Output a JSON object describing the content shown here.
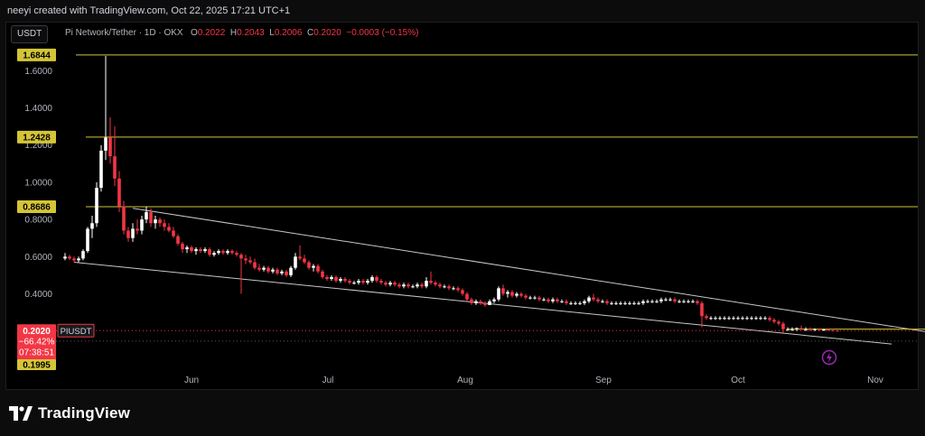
{
  "header": {
    "credit": "neeyi created with TradingView.com, Oct 22, 2025 17:21 UTC+1"
  },
  "toolbar": {
    "symbol_label": "USDT"
  },
  "legend": {
    "pair": "Pi Network/Tether · 1D · OKX",
    "o_label": "O",
    "o_value": "0.2022",
    "h_label": "H",
    "h_value": "0.2043",
    "l_label": "L",
    "l_value": "0.2006",
    "c_label": "C",
    "c_value": "0.2020",
    "change": "−0.0003 (−0.15%)"
  },
  "footer": {
    "brand": "TradingView",
    "logo_icon": "tradingview-logo-icon"
  },
  "colors": {
    "up": "#ffffff",
    "down": "#f23645",
    "level": "#d4c537",
    "trend": "#c8c8c8",
    "axis_text": "#b2b5be",
    "price_tag": "#f23645",
    "lightning": "#9c27b0"
  },
  "chart_data": {
    "type": "candlestick",
    "title": "Pi Network/Tether · 1D · OKX",
    "y_axis": {
      "ticks": [
        "1.6000",
        "1.4000",
        "1.2000",
        "1.0000",
        "0.8000",
        "0.6000",
        "0.4000"
      ],
      "tick_values": [
        1.6,
        1.4,
        1.2,
        1.0,
        0.8,
        0.6,
        0.4
      ]
    },
    "x_axis": {
      "ticks": [
        "Jun",
        "Jul",
        "Aug",
        "Sep",
        "Oct",
        "Nov"
      ]
    },
    "level_lines": [
      {
        "price": 1.6844,
        "label": "1.6844"
      },
      {
        "price": 1.2428,
        "label": "1.2428"
      },
      {
        "price": 0.8686,
        "label": "0.8686"
      }
    ],
    "current_price": {
      "price": 0.202,
      "label": "0.2020",
      "change": "−66.42%",
      "countdown": "07:38:51",
      "symbol": "PIUSDT"
    },
    "low_marker": {
      "price": 0.1995,
      "label": "0.1995"
    },
    "channel": {
      "upper": [
        [
          "May 19",
          0.86
        ],
        [
          "Nov 15",
          0.18
        ]
      ],
      "lower": [
        [
          "May 6",
          0.57
        ],
        [
          "Nov 3",
          0.13
        ]
      ]
    },
    "support_line": {
      "price": 0.21,
      "from": "Oct 11",
      "to": "Nov 15"
    },
    "candles": [
      [
        "May 4",
        0.59,
        0.62,
        0.58,
        0.6
      ],
      [
        "May 5",
        0.6,
        0.61,
        0.58,
        0.59
      ],
      [
        "May 6",
        0.59,
        0.6,
        0.57,
        0.58
      ],
      [
        "May 7",
        0.58,
        0.6,
        0.57,
        0.59
      ],
      [
        "May 8",
        0.59,
        0.64,
        0.58,
        0.63
      ],
      [
        "May 9",
        0.63,
        0.76,
        0.62,
        0.75
      ],
      [
        "May 10",
        0.75,
        0.82,
        0.7,
        0.78
      ],
      [
        "May 11",
        0.78,
        1.0,
        0.76,
        0.97
      ],
      [
        "May 12",
        0.97,
        1.2,
        0.95,
        1.17
      ],
      [
        "May 13",
        1.17,
        1.68,
        1.12,
        1.24
      ],
      [
        "May 14",
        1.24,
        1.35,
        1.1,
        1.14
      ],
      [
        "May 15",
        1.14,
        1.3,
        0.98,
        1.02
      ],
      [
        "May 16",
        1.02,
        1.06,
        0.84,
        0.87
      ],
      [
        "May 17",
        0.87,
        0.9,
        0.72,
        0.74
      ],
      [
        "May 18",
        0.74,
        0.76,
        0.68,
        0.7
      ],
      [
        "May 19",
        0.7,
        0.78,
        0.68,
        0.75
      ],
      [
        "May 20",
        0.75,
        0.8,
        0.72,
        0.74
      ],
      [
        "May 21",
        0.74,
        0.82,
        0.72,
        0.8
      ],
      [
        "May 22",
        0.8,
        0.87,
        0.78,
        0.84
      ],
      [
        "May 23",
        0.84,
        0.86,
        0.76,
        0.78
      ],
      [
        "May 24",
        0.78,
        0.82,
        0.75,
        0.8
      ],
      [
        "May 25",
        0.8,
        0.81,
        0.76,
        0.78
      ],
      [
        "May 26",
        0.78,
        0.8,
        0.74,
        0.76
      ],
      [
        "May 27",
        0.76,
        0.78,
        0.73,
        0.74
      ],
      [
        "May 28",
        0.74,
        0.76,
        0.7,
        0.71
      ],
      [
        "May 29",
        0.71,
        0.72,
        0.66,
        0.67
      ],
      [
        "May 30",
        0.67,
        0.68,
        0.62,
        0.64
      ],
      [
        "May 31",
        0.64,
        0.66,
        0.62,
        0.65
      ],
      [
        "Jun 1",
        0.65,
        0.66,
        0.62,
        0.63
      ],
      [
        "Jun 2",
        0.63,
        0.65,
        0.61,
        0.64
      ],
      [
        "Jun 3",
        0.64,
        0.65,
        0.62,
        0.63
      ],
      [
        "Jun 4",
        0.63,
        0.65,
        0.62,
        0.64
      ],
      [
        "Jun 5",
        0.64,
        0.65,
        0.6,
        0.61
      ],
      [
        "Jun 6",
        0.61,
        0.63,
        0.6,
        0.62
      ],
      [
        "Jun 7",
        0.62,
        0.64,
        0.61,
        0.63
      ],
      [
        "Jun 8",
        0.63,
        0.64,
        0.61,
        0.62
      ],
      [
        "Jun 9",
        0.62,
        0.64,
        0.61,
        0.63
      ],
      [
        "Jun 10",
        0.63,
        0.64,
        0.61,
        0.62
      ],
      [
        "Jun 11",
        0.62,
        0.63,
        0.6,
        0.61
      ],
      [
        "Jun 12",
        0.61,
        0.62,
        0.4,
        0.59
      ],
      [
        "Jun 13",
        0.59,
        0.61,
        0.56,
        0.58
      ],
      [
        "Jun 14",
        0.58,
        0.6,
        0.56,
        0.57
      ],
      [
        "Jun 15",
        0.57,
        0.59,
        0.53,
        0.54
      ],
      [
        "Jun 16",
        0.54,
        0.56,
        0.52,
        0.53
      ],
      [
        "Jun 17",
        0.53,
        0.55,
        0.52,
        0.54
      ],
      [
        "Jun 18",
        0.54,
        0.55,
        0.51,
        0.52
      ],
      [
        "Jun 19",
        0.52,
        0.54,
        0.51,
        0.53
      ],
      [
        "Jun 20",
        0.53,
        0.54,
        0.5,
        0.51
      ],
      [
        "Jun 21",
        0.51,
        0.53,
        0.5,
        0.52
      ],
      [
        "Jun 22",
        0.52,
        0.53,
        0.49,
        0.5
      ],
      [
        "Jun 23",
        0.5,
        0.55,
        0.49,
        0.54
      ],
      [
        "Jun 24",
        0.54,
        0.62,
        0.53,
        0.6
      ],
      [
        "Jun 25",
        0.6,
        0.66,
        0.58,
        0.59
      ],
      [
        "Jun 26",
        0.59,
        0.61,
        0.56,
        0.57
      ],
      [
        "Jun 27",
        0.57,
        0.58,
        0.53,
        0.54
      ],
      [
        "Jun 28",
        0.54,
        0.56,
        0.52,
        0.55
      ],
      [
        "Jun 29",
        0.55,
        0.56,
        0.51,
        0.52
      ],
      [
        "Jun 30",
        0.52,
        0.53,
        0.48,
        0.49
      ],
      [
        "Jul 1",
        0.49,
        0.5,
        0.47,
        0.48
      ],
      [
        "Jul 2",
        0.48,
        0.5,
        0.47,
        0.49
      ],
      [
        "Jul 3",
        0.49,
        0.5,
        0.46,
        0.47
      ],
      [
        "Jul 4",
        0.47,
        0.49,
        0.46,
        0.48
      ],
      [
        "Jul 5",
        0.48,
        0.49,
        0.46,
        0.47
      ],
      [
        "Jul 6",
        0.47,
        0.48,
        0.45,
        0.46
      ],
      [
        "Jul 7",
        0.46,
        0.47,
        0.45,
        0.46
      ],
      [
        "Jul 8",
        0.46,
        0.48,
        0.45,
        0.47
      ],
      [
        "Jul 9",
        0.47,
        0.48,
        0.45,
        0.46
      ],
      [
        "Jul 10",
        0.46,
        0.48,
        0.45,
        0.47
      ],
      [
        "Jul 11",
        0.47,
        0.5,
        0.46,
        0.49
      ],
      [
        "Jul 12",
        0.49,
        0.5,
        0.46,
        0.47
      ],
      [
        "Jul 13",
        0.47,
        0.48,
        0.45,
        0.46
      ],
      [
        "Jul 14",
        0.46,
        0.47,
        0.44,
        0.45
      ],
      [
        "Jul 15",
        0.45,
        0.47,
        0.44,
        0.46
      ],
      [
        "Jul 16",
        0.46,
        0.47,
        0.44,
        0.45
      ],
      [
        "Jul 17",
        0.45,
        0.46,
        0.43,
        0.44
      ],
      [
        "Jul 18",
        0.44,
        0.46,
        0.43,
        0.45
      ],
      [
        "Jul 19",
        0.45,
        0.46,
        0.43,
        0.44
      ],
      [
        "Jul 20",
        0.44,
        0.45,
        0.43,
        0.44
      ],
      [
        "Jul 21",
        0.44,
        0.46,
        0.43,
        0.45
      ],
      [
        "Jul 22",
        0.45,
        0.46,
        0.43,
        0.44
      ],
      [
        "Jul 23",
        0.44,
        0.49,
        0.43,
        0.47
      ],
      [
        "Jul 24",
        0.47,
        0.52,
        0.45,
        0.46
      ],
      [
        "Jul 25",
        0.46,
        0.47,
        0.44,
        0.45
      ],
      [
        "Jul 26",
        0.45,
        0.46,
        0.43,
        0.44
      ],
      [
        "Jul 27",
        0.44,
        0.45,
        0.43,
        0.44
      ],
      [
        "Jul 28",
        0.44,
        0.45,
        0.42,
        0.43
      ],
      [
        "Jul 29",
        0.43,
        0.44,
        0.42,
        0.43
      ],
      [
        "Jul 30",
        0.43,
        0.44,
        0.41,
        0.42
      ],
      [
        "Jul 31",
        0.42,
        0.43,
        0.39,
        0.4
      ],
      [
        "Aug 1",
        0.4,
        0.41,
        0.36,
        0.37
      ],
      [
        "Aug 2",
        0.37,
        0.38,
        0.34,
        0.35
      ],
      [
        "Aug 3",
        0.35,
        0.37,
        0.34,
        0.36
      ],
      [
        "Aug 4",
        0.36,
        0.37,
        0.34,
        0.35
      ],
      [
        "Aug 5",
        0.35,
        0.36,
        0.33,
        0.34
      ],
      [
        "Aug 6",
        0.34,
        0.37,
        0.34,
        0.36
      ],
      [
        "Aug 7",
        0.36,
        0.38,
        0.35,
        0.37
      ],
      [
        "Aug 8",
        0.37,
        0.44,
        0.36,
        0.43
      ],
      [
        "Aug 9",
        0.43,
        0.45,
        0.39,
        0.4
      ],
      [
        "Aug 10",
        0.4,
        0.42,
        0.38,
        0.41
      ],
      [
        "Aug 11",
        0.41,
        0.42,
        0.38,
        0.39
      ],
      [
        "Aug 12",
        0.39,
        0.41,
        0.38,
        0.4
      ],
      [
        "Aug 13",
        0.4,
        0.41,
        0.38,
        0.39
      ],
      [
        "Aug 14",
        0.39,
        0.4,
        0.37,
        0.38
      ],
      [
        "Aug 15",
        0.38,
        0.39,
        0.37,
        0.38
      ],
      [
        "Aug 16",
        0.38,
        0.39,
        0.37,
        0.38
      ],
      [
        "Aug 17",
        0.38,
        0.39,
        0.36,
        0.37
      ],
      [
        "Aug 18",
        0.37,
        0.38,
        0.36,
        0.37
      ],
      [
        "Aug 19",
        0.37,
        0.38,
        0.35,
        0.36
      ],
      [
        "Aug 20",
        0.36,
        0.38,
        0.35,
        0.37
      ],
      [
        "Aug 21",
        0.37,
        0.38,
        0.35,
        0.36
      ],
      [
        "Aug 22",
        0.36,
        0.37,
        0.35,
        0.36
      ],
      [
        "Aug 23",
        0.36,
        0.37,
        0.34,
        0.35
      ],
      [
        "Aug 24",
        0.35,
        0.36,
        0.34,
        0.35
      ],
      [
        "Aug 25",
        0.35,
        0.36,
        0.34,
        0.35
      ],
      [
        "Aug 26",
        0.35,
        0.36,
        0.34,
        0.35
      ],
      [
        "Aug 27",
        0.35,
        0.37,
        0.34,
        0.36
      ],
      [
        "Aug 28",
        0.36,
        0.39,
        0.35,
        0.38
      ],
      [
        "Aug 29",
        0.38,
        0.4,
        0.36,
        0.37
      ],
      [
        "Aug 30",
        0.37,
        0.38,
        0.35,
        0.36
      ],
      [
        "Aug 31",
        0.36,
        0.37,
        0.35,
        0.36
      ],
      [
        "Sep 1",
        0.36,
        0.37,
        0.34,
        0.35
      ],
      [
        "Sep 2",
        0.35,
        0.36,
        0.34,
        0.35
      ],
      [
        "Sep 3",
        0.35,
        0.36,
        0.34,
        0.35
      ],
      [
        "Sep 4",
        0.35,
        0.36,
        0.34,
        0.35
      ],
      [
        "Sep 5",
        0.35,
        0.36,
        0.34,
        0.35
      ],
      [
        "Sep 6",
        0.35,
        0.36,
        0.34,
        0.35
      ],
      [
        "Sep 7",
        0.35,
        0.36,
        0.34,
        0.35
      ],
      [
        "Sep 8",
        0.35,
        0.36,
        0.34,
        0.35
      ],
      [
        "Sep 9",
        0.35,
        0.37,
        0.34,
        0.36
      ],
      [
        "Sep 10",
        0.36,
        0.37,
        0.35,
        0.36
      ],
      [
        "Sep 11",
        0.36,
        0.37,
        0.35,
        0.36
      ],
      [
        "Sep 12",
        0.36,
        0.37,
        0.35,
        0.36
      ],
      [
        "Sep 13",
        0.36,
        0.38,
        0.35,
        0.37
      ],
      [
        "Sep 14",
        0.37,
        0.38,
        0.36,
        0.37
      ],
      [
        "Sep 15",
        0.37,
        0.38,
        0.36,
        0.37
      ],
      [
        "Sep 16",
        0.37,
        0.38,
        0.35,
        0.36
      ],
      [
        "Sep 17",
        0.36,
        0.37,
        0.35,
        0.36
      ],
      [
        "Sep 18",
        0.36,
        0.37,
        0.35,
        0.36
      ],
      [
        "Sep 19",
        0.36,
        0.37,
        0.35,
        0.36
      ],
      [
        "Sep 20",
        0.36,
        0.37,
        0.35,
        0.36
      ],
      [
        "Sep 21",
        0.36,
        0.37,
        0.34,
        0.35
      ],
      [
        "Sep 22",
        0.35,
        0.36,
        0.22,
        0.28
      ],
      [
        "Sep 23",
        0.28,
        0.29,
        0.26,
        0.27
      ],
      [
        "Sep 24",
        0.27,
        0.28,
        0.26,
        0.27
      ],
      [
        "Sep 25",
        0.27,
        0.28,
        0.26,
        0.27
      ],
      [
        "Sep 26",
        0.27,
        0.28,
        0.26,
        0.27
      ],
      [
        "Sep 27",
        0.27,
        0.28,
        0.26,
        0.27
      ],
      [
        "Sep 28",
        0.27,
        0.28,
        0.26,
        0.27
      ],
      [
        "Sep 29",
        0.27,
        0.28,
        0.26,
        0.27
      ],
      [
        "Sep 30",
        0.27,
        0.28,
        0.26,
        0.27
      ],
      [
        "Oct 1",
        0.27,
        0.28,
        0.26,
        0.27
      ],
      [
        "Oct 2",
        0.27,
        0.28,
        0.26,
        0.27
      ],
      [
        "Oct 3",
        0.27,
        0.28,
        0.26,
        0.27
      ],
      [
        "Oct 4",
        0.27,
        0.28,
        0.26,
        0.27
      ],
      [
        "Oct 5",
        0.27,
        0.28,
        0.26,
        0.27
      ],
      [
        "Oct 6",
        0.27,
        0.28,
        0.26,
        0.27
      ],
      [
        "Oct 7",
        0.27,
        0.28,
        0.25,
        0.26
      ],
      [
        "Oct 8",
        0.26,
        0.27,
        0.24,
        0.25
      ],
      [
        "Oct 9",
        0.25,
        0.26,
        0.23,
        0.24
      ],
      [
        "Oct 10",
        0.24,
        0.25,
        0.19,
        0.21
      ],
      [
        "Oct 11",
        0.21,
        0.22,
        0.2,
        0.21
      ],
      [
        "Oct 12",
        0.21,
        0.22,
        0.2,
        0.21
      ],
      [
        "Oct 13",
        0.21,
        0.22,
        0.2,
        0.215
      ],
      [
        "Oct 14",
        0.215,
        0.23,
        0.205,
        0.21
      ],
      [
        "Oct 15",
        0.21,
        0.22,
        0.2,
        0.21
      ],
      [
        "Oct 16",
        0.21,
        0.22,
        0.2,
        0.205
      ],
      [
        "Oct 17",
        0.205,
        0.215,
        0.2,
        0.21
      ],
      [
        "Oct 18",
        0.21,
        0.215,
        0.2,
        0.205
      ],
      [
        "Oct 19",
        0.205,
        0.212,
        0.2,
        0.208
      ],
      [
        "Oct 20",
        0.208,
        0.212,
        0.2,
        0.204
      ],
      [
        "Oct 21",
        0.204,
        0.21,
        0.2,
        0.2022
      ],
      [
        "Oct 22",
        0.2022,
        0.2043,
        0.2006,
        0.202
      ]
    ]
  }
}
